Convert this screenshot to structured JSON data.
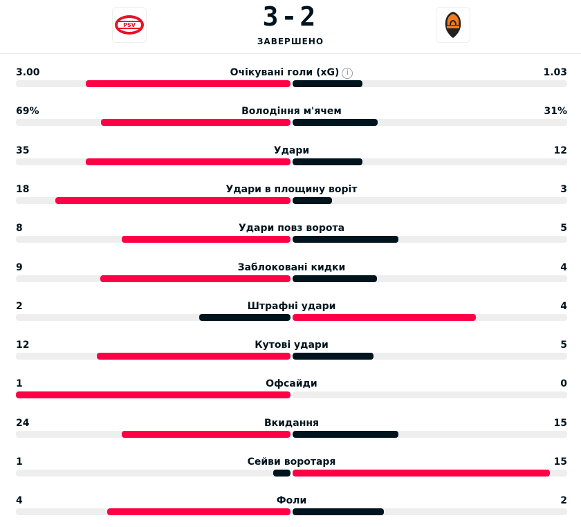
{
  "header": {
    "score": "3-2",
    "status": "ЗАВЕРШЕНО",
    "home_logo": "PSV",
    "away_logo": "ШАХТАР"
  },
  "colors": {
    "leader": "#ff0046",
    "other": "#00141e",
    "track": "#eeeeee"
  },
  "stats": [
    {
      "label": "Очікувані голи (xG)",
      "home": "3.00",
      "away": "1.03",
      "info": true
    },
    {
      "label": "Володіння м'ячем",
      "home": "69%",
      "away": "31%"
    },
    {
      "label": "Удари",
      "home": "35",
      "away": "12"
    },
    {
      "label": "Удари в площину воріт",
      "home": "18",
      "away": "3"
    },
    {
      "label": "Удари повз ворота",
      "home": "8",
      "away": "5"
    },
    {
      "label": "Заблоковані кидки",
      "home": "9",
      "away": "4"
    },
    {
      "label": "Штрафні удари",
      "home": "2",
      "away": "4"
    },
    {
      "label": "Кутові удари",
      "home": "12",
      "away": "5"
    },
    {
      "label": "Офсайди",
      "home": "1",
      "away": "0"
    },
    {
      "label": "Вкидання",
      "home": "24",
      "away": "15"
    },
    {
      "label": "Сейви воротаря",
      "home": "1",
      "away": "15"
    },
    {
      "label": "Фоли",
      "home": "4",
      "away": "2"
    }
  ]
}
